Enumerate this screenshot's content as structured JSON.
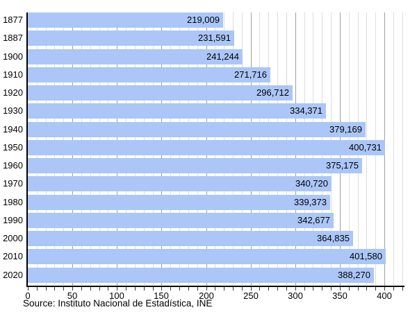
{
  "chart_data": {
    "type": "bar",
    "orientation": "horizontal",
    "title": "",
    "xlabel": "",
    "ylabel": "",
    "categories": [
      "1877",
      "1887",
      "1900",
      "1910",
      "1920",
      "1930",
      "1940",
      "1950",
      "1960",
      "1970",
      "1980",
      "1990",
      "2000",
      "2010",
      "2020"
    ],
    "values": [
      219009,
      231591,
      241244,
      271716,
      296712,
      334371,
      379169,
      400731,
      375175,
      340720,
      339373,
      342677,
      364835,
      401580,
      388270
    ],
    "value_labels": [
      "219,009",
      "231,591",
      "241,244",
      "271,716",
      "296,712",
      "334,371",
      "379,169",
      "400,731",
      "375,175",
      "340,720",
      "339,373",
      "342,677",
      "364,835",
      "401,580",
      "388,270"
    ],
    "x_axis_unit": "thousands",
    "xlim": [
      0,
      421
    ],
    "x_major_ticks": [
      0,
      50,
      100,
      150,
      200,
      250,
      300,
      350,
      400
    ],
    "x_minor_tick_step": 10,
    "x_tick_max": 420,
    "grid": "vertical",
    "legend": "none",
    "source": "Source: Instituto Nacional de Estadística, INE",
    "colors": {
      "bar_fill": "#abc6f7",
      "minor_gridline": "#dddddd",
      "major_gridline": "#9e9e9e",
      "axis_line": "#000000",
      "tick_mark": "#333333",
      "text": "#000000",
      "background": "#ffffff"
    }
  }
}
